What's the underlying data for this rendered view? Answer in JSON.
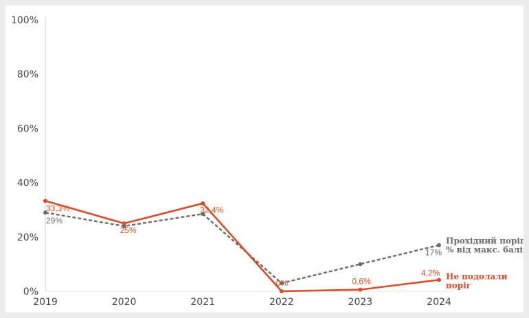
{
  "chart_data": {
    "type": "line",
    "categories": [
      "2019",
      "2020",
      "2021",
      "2022",
      "2023",
      "2024"
    ],
    "y_ticks": [
      "0%",
      "20%",
      "40%",
      "60%",
      "80%",
      "100%"
    ],
    "ylim": [
      0,
      100
    ],
    "grid": false,
    "series": [
      {
        "name": "Прохідний поріг, % від макс. балів",
        "legend_lines": [
          "Прохідний поріг,",
          "% від макс. балів"
        ],
        "color": "#6b6b6b",
        "style": "dashed",
        "values": [
          29,
          24,
          28.5,
          3,
          10,
          17
        ],
        "labels": [
          "29%",
          null,
          null,
          null,
          null,
          "17%"
        ]
      },
      {
        "name": "Не подолали поріг",
        "legend_lines": [
          "Не подолали",
          "поріг"
        ],
        "color": "#e04a25",
        "style": "solid",
        "values": [
          33.3,
          25,
          32.4,
          0,
          0.6,
          4.2
        ],
        "labels": [
          "33,3%",
          "25%",
          "32,4%",
          "0%",
          "0,6%",
          "4,2%"
        ]
      }
    ]
  }
}
